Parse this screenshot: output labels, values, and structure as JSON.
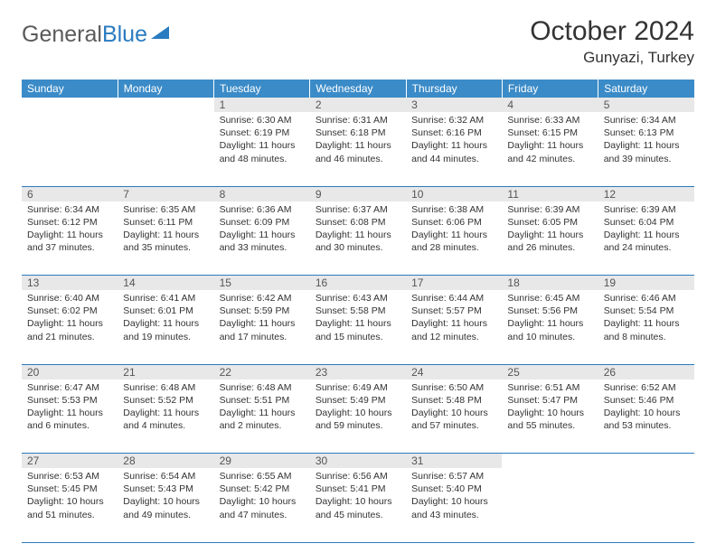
{
  "brand": {
    "part1": "General",
    "part2": "Blue"
  },
  "title": "October 2024",
  "location": "Gunyazi, Turkey",
  "colors": {
    "header_bg": "#3b8bc8",
    "header_text": "#ffffff",
    "daynum_bg": "#e8e8e8",
    "border": "#2a7bc0",
    "body_text": "#333333"
  },
  "day_headers": [
    "Sunday",
    "Monday",
    "Tuesday",
    "Wednesday",
    "Thursday",
    "Friday",
    "Saturday"
  ],
  "weeks": [
    [
      {
        "n": "",
        "sr": "",
        "ss": "",
        "dl": ""
      },
      {
        "n": "",
        "sr": "",
        "ss": "",
        "dl": ""
      },
      {
        "n": "1",
        "sr": "Sunrise: 6:30 AM",
        "ss": "Sunset: 6:19 PM",
        "dl": "Daylight: 11 hours and 48 minutes."
      },
      {
        "n": "2",
        "sr": "Sunrise: 6:31 AM",
        "ss": "Sunset: 6:18 PM",
        "dl": "Daylight: 11 hours and 46 minutes."
      },
      {
        "n": "3",
        "sr": "Sunrise: 6:32 AM",
        "ss": "Sunset: 6:16 PM",
        "dl": "Daylight: 11 hours and 44 minutes."
      },
      {
        "n": "4",
        "sr": "Sunrise: 6:33 AM",
        "ss": "Sunset: 6:15 PM",
        "dl": "Daylight: 11 hours and 42 minutes."
      },
      {
        "n": "5",
        "sr": "Sunrise: 6:34 AM",
        "ss": "Sunset: 6:13 PM",
        "dl": "Daylight: 11 hours and 39 minutes."
      }
    ],
    [
      {
        "n": "6",
        "sr": "Sunrise: 6:34 AM",
        "ss": "Sunset: 6:12 PM",
        "dl": "Daylight: 11 hours and 37 minutes."
      },
      {
        "n": "7",
        "sr": "Sunrise: 6:35 AM",
        "ss": "Sunset: 6:11 PM",
        "dl": "Daylight: 11 hours and 35 minutes."
      },
      {
        "n": "8",
        "sr": "Sunrise: 6:36 AM",
        "ss": "Sunset: 6:09 PM",
        "dl": "Daylight: 11 hours and 33 minutes."
      },
      {
        "n": "9",
        "sr": "Sunrise: 6:37 AM",
        "ss": "Sunset: 6:08 PM",
        "dl": "Daylight: 11 hours and 30 minutes."
      },
      {
        "n": "10",
        "sr": "Sunrise: 6:38 AM",
        "ss": "Sunset: 6:06 PM",
        "dl": "Daylight: 11 hours and 28 minutes."
      },
      {
        "n": "11",
        "sr": "Sunrise: 6:39 AM",
        "ss": "Sunset: 6:05 PM",
        "dl": "Daylight: 11 hours and 26 minutes."
      },
      {
        "n": "12",
        "sr": "Sunrise: 6:39 AM",
        "ss": "Sunset: 6:04 PM",
        "dl": "Daylight: 11 hours and 24 minutes."
      }
    ],
    [
      {
        "n": "13",
        "sr": "Sunrise: 6:40 AM",
        "ss": "Sunset: 6:02 PM",
        "dl": "Daylight: 11 hours and 21 minutes."
      },
      {
        "n": "14",
        "sr": "Sunrise: 6:41 AM",
        "ss": "Sunset: 6:01 PM",
        "dl": "Daylight: 11 hours and 19 minutes."
      },
      {
        "n": "15",
        "sr": "Sunrise: 6:42 AM",
        "ss": "Sunset: 5:59 PM",
        "dl": "Daylight: 11 hours and 17 minutes."
      },
      {
        "n": "16",
        "sr": "Sunrise: 6:43 AM",
        "ss": "Sunset: 5:58 PM",
        "dl": "Daylight: 11 hours and 15 minutes."
      },
      {
        "n": "17",
        "sr": "Sunrise: 6:44 AM",
        "ss": "Sunset: 5:57 PM",
        "dl": "Daylight: 11 hours and 12 minutes."
      },
      {
        "n": "18",
        "sr": "Sunrise: 6:45 AM",
        "ss": "Sunset: 5:56 PM",
        "dl": "Daylight: 11 hours and 10 minutes."
      },
      {
        "n": "19",
        "sr": "Sunrise: 6:46 AM",
        "ss": "Sunset: 5:54 PM",
        "dl": "Daylight: 11 hours and 8 minutes."
      }
    ],
    [
      {
        "n": "20",
        "sr": "Sunrise: 6:47 AM",
        "ss": "Sunset: 5:53 PM",
        "dl": "Daylight: 11 hours and 6 minutes."
      },
      {
        "n": "21",
        "sr": "Sunrise: 6:48 AM",
        "ss": "Sunset: 5:52 PM",
        "dl": "Daylight: 11 hours and 4 minutes."
      },
      {
        "n": "22",
        "sr": "Sunrise: 6:48 AM",
        "ss": "Sunset: 5:51 PM",
        "dl": "Daylight: 11 hours and 2 minutes."
      },
      {
        "n": "23",
        "sr": "Sunrise: 6:49 AM",
        "ss": "Sunset: 5:49 PM",
        "dl": "Daylight: 10 hours and 59 minutes."
      },
      {
        "n": "24",
        "sr": "Sunrise: 6:50 AM",
        "ss": "Sunset: 5:48 PM",
        "dl": "Daylight: 10 hours and 57 minutes."
      },
      {
        "n": "25",
        "sr": "Sunrise: 6:51 AM",
        "ss": "Sunset: 5:47 PM",
        "dl": "Daylight: 10 hours and 55 minutes."
      },
      {
        "n": "26",
        "sr": "Sunrise: 6:52 AM",
        "ss": "Sunset: 5:46 PM",
        "dl": "Daylight: 10 hours and 53 minutes."
      }
    ],
    [
      {
        "n": "27",
        "sr": "Sunrise: 6:53 AM",
        "ss": "Sunset: 5:45 PM",
        "dl": "Daylight: 10 hours and 51 minutes."
      },
      {
        "n": "28",
        "sr": "Sunrise: 6:54 AM",
        "ss": "Sunset: 5:43 PM",
        "dl": "Daylight: 10 hours and 49 minutes."
      },
      {
        "n": "29",
        "sr": "Sunrise: 6:55 AM",
        "ss": "Sunset: 5:42 PM",
        "dl": "Daylight: 10 hours and 47 minutes."
      },
      {
        "n": "30",
        "sr": "Sunrise: 6:56 AM",
        "ss": "Sunset: 5:41 PM",
        "dl": "Daylight: 10 hours and 45 minutes."
      },
      {
        "n": "31",
        "sr": "Sunrise: 6:57 AM",
        "ss": "Sunset: 5:40 PM",
        "dl": "Daylight: 10 hours and 43 minutes."
      },
      {
        "n": "",
        "sr": "",
        "ss": "",
        "dl": ""
      },
      {
        "n": "",
        "sr": "",
        "ss": "",
        "dl": ""
      }
    ]
  ]
}
